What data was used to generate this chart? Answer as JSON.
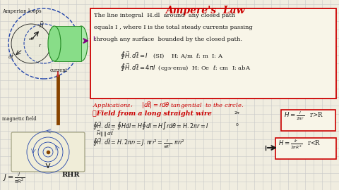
{
  "title": "Ampere's  Law",
  "title_color": "#cc0000",
  "bg_color": "#f0ede0",
  "grid_color": "#c8c8c8",
  "text_color": "#1a1a1a",
  "red_color": "#cc0000",
  "left_label1": "Amperian loops",
  "left_label2": "current",
  "left_label3": "magnetic field",
  "left_label4": "RHR"
}
